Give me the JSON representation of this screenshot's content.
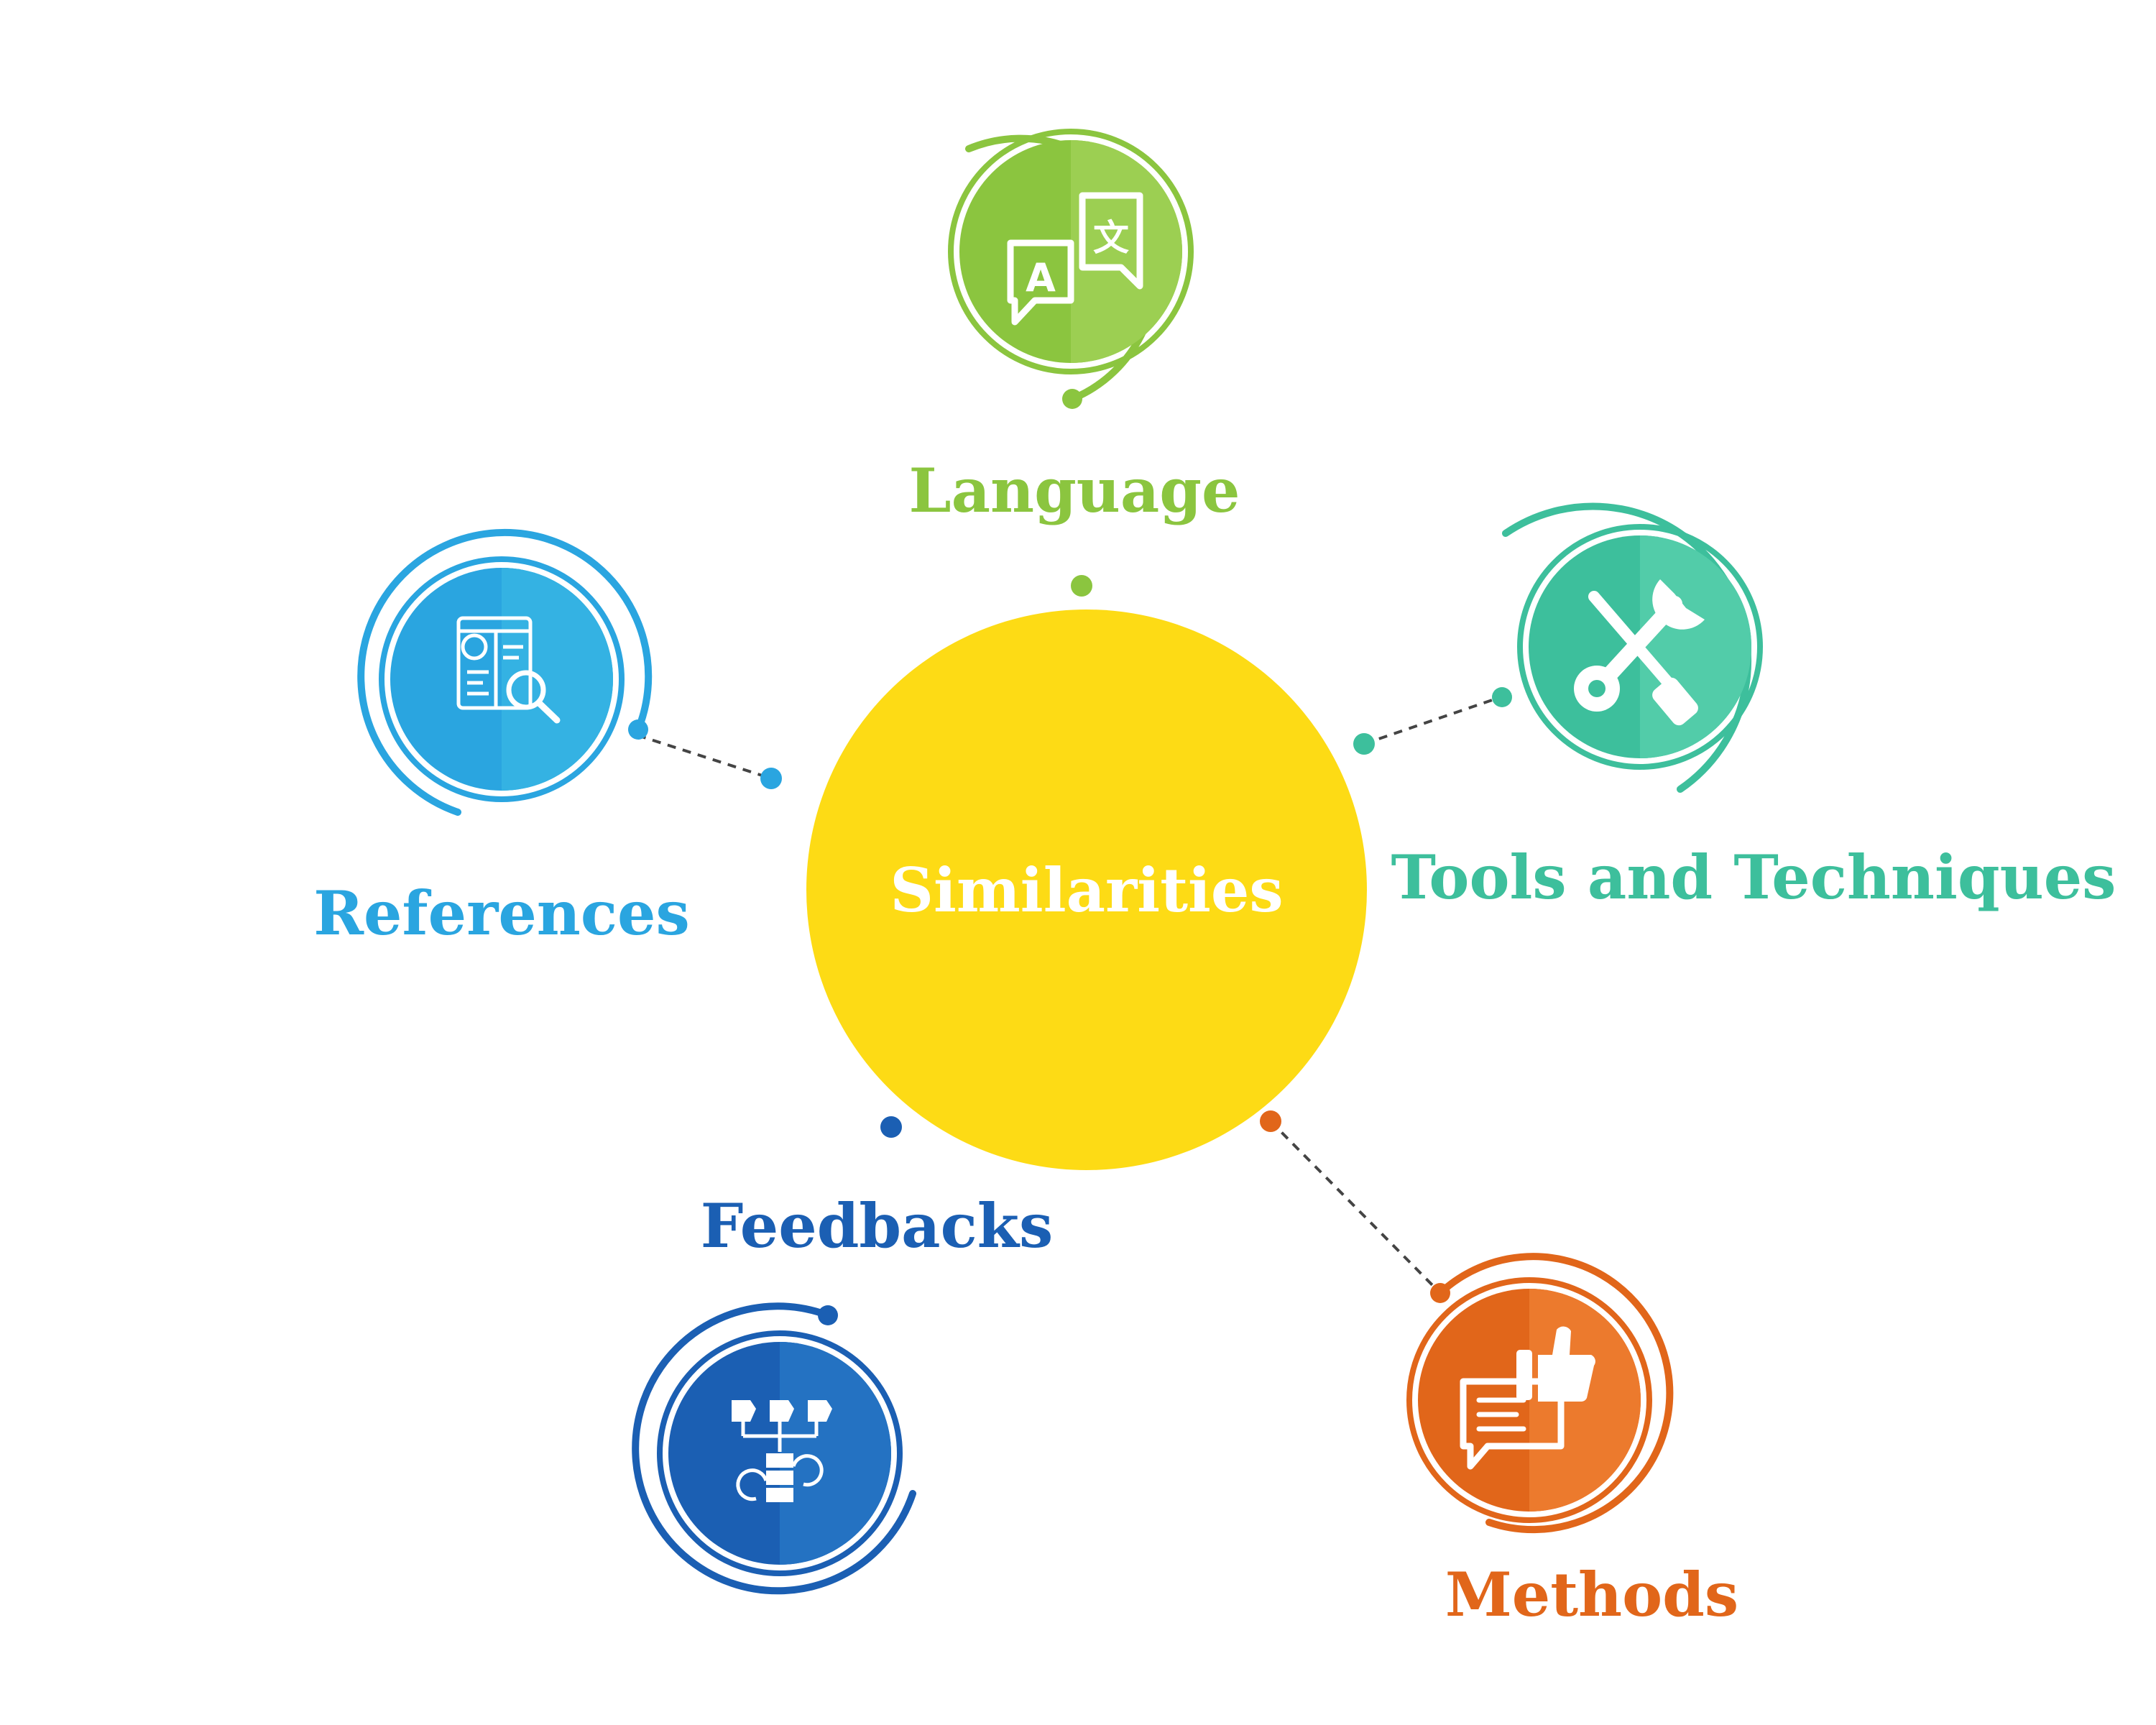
{
  "center": {
    "label": "Similarities",
    "color": "#FDDB15",
    "text_color": "#FFFFFF"
  },
  "connector_color": "#444444",
  "nodes": [
    {
      "id": "language",
      "label": "Language",
      "color": "#8BC53F",
      "light": "#9CCF52",
      "icon": "translate-icon"
    },
    {
      "id": "tools",
      "label": "Tools and Techniques",
      "color": "#3DBF9C",
      "light": "#52CCA9",
      "icon": "wrench-screwdriver-icon"
    },
    {
      "id": "methods",
      "label": "Methods",
      "color": "#E1661A",
      "light": "#EC7A2D",
      "icon": "chat-thumbs-up-icon"
    },
    {
      "id": "feedbacks",
      "label": "Feedbacks",
      "color": "#1B5FB3",
      "light": "#2472C2",
      "icon": "workflow-icon"
    },
    {
      "id": "references",
      "label": "References",
      "color": "#2AA5E0",
      "light": "#34B2E3",
      "icon": "document-search-icon"
    }
  ]
}
